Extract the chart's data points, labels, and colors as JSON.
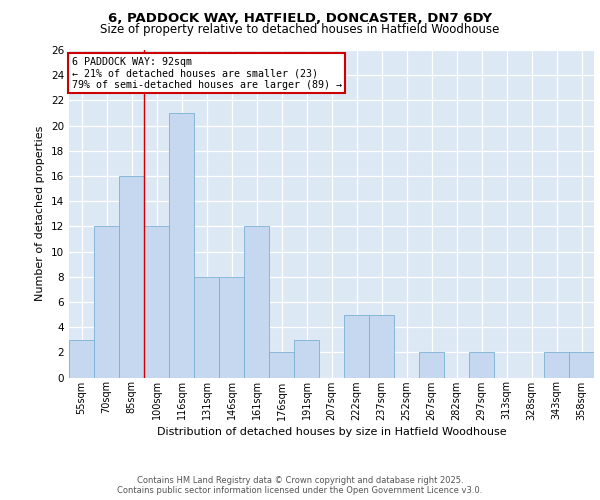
{
  "title_line1": "6, PADDOCK WAY, HATFIELD, DONCASTER, DN7 6DY",
  "title_line2": "Size of property relative to detached houses in Hatfield Woodhouse",
  "xlabel": "Distribution of detached houses by size in Hatfield Woodhouse",
  "ylabel": "Number of detached properties",
  "bar_labels": [
    "55sqm",
    "70sqm",
    "85sqm",
    "100sqm",
    "116sqm",
    "131sqm",
    "146sqm",
    "161sqm",
    "176sqm",
    "191sqm",
    "207sqm",
    "222sqm",
    "237sqm",
    "252sqm",
    "267sqm",
    "282sqm",
    "297sqm",
    "313sqm",
    "328sqm",
    "343sqm",
    "358sqm"
  ],
  "bar_values": [
    3,
    12,
    16,
    12,
    21,
    8,
    8,
    12,
    2,
    3,
    0,
    5,
    5,
    0,
    2,
    0,
    2,
    0,
    0,
    2,
    2
  ],
  "bar_color": "#c5d8f0",
  "bar_edge_color": "#7ab0d4",
  "annotation_line": "6 PADDOCK WAY: 92sqm",
  "annotation_smaller": "← 21% of detached houses are smaller (23)",
  "annotation_larger": "79% of semi-detached houses are larger (89) →",
  "red_line_x": 2.5,
  "ylim": [
    0,
    26
  ],
  "yticks": [
    0,
    2,
    4,
    6,
    8,
    10,
    12,
    14,
    16,
    18,
    20,
    22,
    24,
    26
  ],
  "background_color": "#dde8f5",
  "footer_line1": "Contains HM Land Registry data © Crown copyright and database right 2025.",
  "footer_line2": "Contains public sector information licensed under the Open Government Licence v3.0.",
  "annotation_box_color": "#ffffff",
  "annotation_box_edge_color": "#cc0000",
  "red_line_color": "#cc0000"
}
